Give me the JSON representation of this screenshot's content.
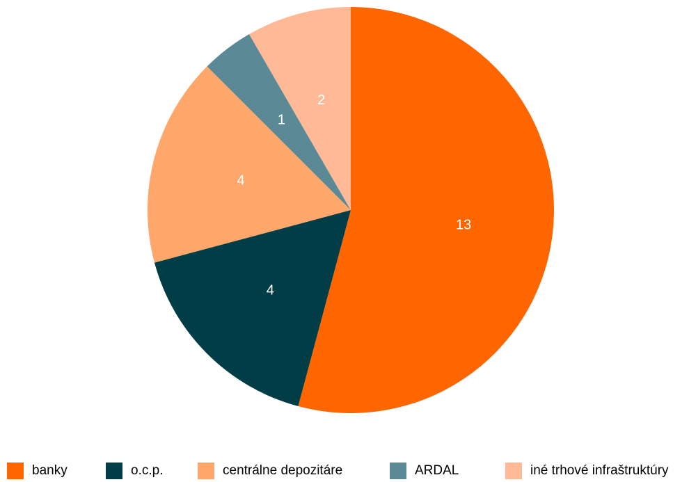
{
  "chart_data": {
    "type": "pie",
    "categories": [
      "banky",
      "o.c.p.",
      "centrálne depozitáre",
      "ARDAL",
      "iné trhové infraštruktúry"
    ],
    "values": [
      13,
      4,
      4,
      1,
      2
    ],
    "data_labels": [
      "13",
      "4",
      "4",
      "1",
      "2"
    ],
    "colors": [
      "#FF6600",
      "#003D46",
      "#FFA66B",
      "#5B8A96",
      "#FFB997"
    ],
    "label_color": "#FFFFFF",
    "legend": "bottom",
    "start_angle": "12 o'clock",
    "direction": "clockwise"
  }
}
